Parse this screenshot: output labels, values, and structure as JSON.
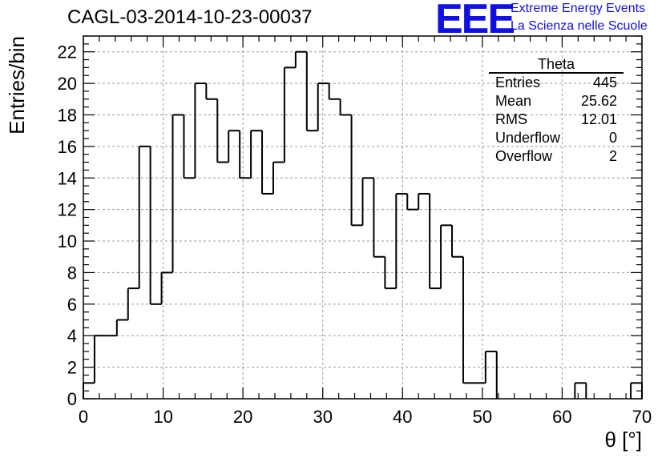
{
  "chart_data": {
    "type": "histogram",
    "title": "CAGL-03-2014-10-23-00037",
    "xlabel": "θ [°]",
    "ylabel": "Entries/bin",
    "xlim": [
      0,
      70
    ],
    "ylim": [
      0,
      23
    ],
    "bin_width": 1.4,
    "x_ticks": [
      0,
      10,
      20,
      30,
      40,
      50,
      60,
      70
    ],
    "y_ticks": [
      0,
      2,
      4,
      6,
      8,
      10,
      12,
      14,
      16,
      18,
      20,
      22
    ],
    "grid": true,
    "values": [
      1,
      4,
      4,
      5,
      7,
      16,
      6,
      8,
      18,
      14,
      20,
      19,
      15,
      17,
      14,
      17,
      13,
      15,
      21,
      22,
      17,
      20,
      19,
      18,
      11,
      14,
      9,
      7,
      13,
      12,
      13,
      7,
      11,
      9,
      1,
      1,
      3,
      0,
      0,
      0,
      0,
      0,
      0,
      0,
      1,
      0,
      0,
      0,
      0,
      1
    ]
  },
  "logo": {
    "mark": "EEE",
    "line1": "Extreme Energy Events",
    "line2": "La Scienza nelle Scuole"
  },
  "stats": {
    "title": "Theta",
    "rows": [
      {
        "label": "Entries",
        "value": "445"
      },
      {
        "label": "Mean",
        "value": "25.62"
      },
      {
        "label": "RMS",
        "value": "12.01"
      },
      {
        "label": "Underflow",
        "value": "0"
      },
      {
        "label": "Overflow",
        "value": "2"
      }
    ]
  }
}
